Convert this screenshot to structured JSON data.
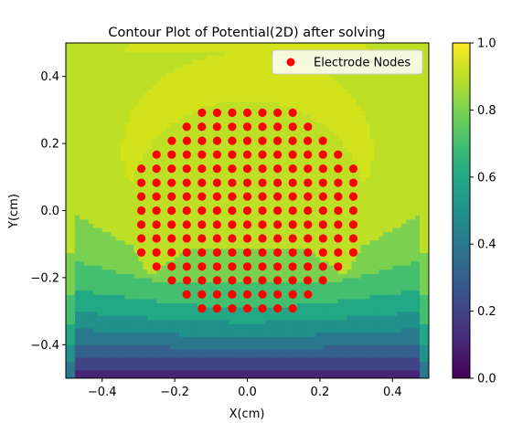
{
  "chart_data": {
    "type": "contour",
    "title": "Contour Plot of Potential(2D) after solving",
    "xlabel": "X(cm)",
    "ylabel": "Y(cm)",
    "xlim": [
      -0.5,
      0.5
    ],
    "ylim": [
      -0.5,
      0.5
    ],
    "x_ticks": [
      -0.4,
      -0.2,
      0.0,
      0.2,
      0.4
    ],
    "x_tick_labels": [
      "−0.4",
      "−0.2",
      "0.0",
      "0.2",
      "0.4"
    ],
    "y_ticks": [
      -0.4,
      -0.2,
      0.0,
      0.2,
      0.4
    ],
    "y_tick_labels": [
      "−0.4",
      "−0.2",
      "0.0",
      "0.2",
      "0.4"
    ],
    "colorbar": {
      "range": [
        0.0,
        1.0
      ],
      "ticks": [
        0.0,
        0.2,
        0.4,
        0.6,
        0.8,
        1.0
      ],
      "tick_labels": [
        "0.0",
        "0.2",
        "0.4",
        "0.6",
        "0.8",
        "1.0"
      ],
      "colormap": "viridis"
    },
    "levels": [
      0.0,
      0.1,
      0.2,
      0.3,
      0.4,
      0.5,
      0.6,
      0.7,
      0.8,
      0.9,
      1.0
    ],
    "level_colors": [
      "#482475",
      "#414487",
      "#355f8d",
      "#2a788e",
      "#21918c",
      "#22a884",
      "#44bf70",
      "#7ad151",
      "#bddf26",
      "#d2e21b",
      "#fde725"
    ],
    "legend": {
      "label": "Electrode Nodes",
      "location": "upper right",
      "marker_color": "#ff0000"
    },
    "electrode_nodes": {
      "marker_color": "#ff0000",
      "grid_step": 0.0417,
      "rows": [
        {
          "y": 0.292,
          "x_min": -0.125,
          "x_max": 0.125
        },
        {
          "y": 0.25,
          "x_min": -0.167,
          "x_max": 0.167
        },
        {
          "y": 0.208,
          "x_min": -0.208,
          "x_max": 0.208
        },
        {
          "y": 0.167,
          "x_min": -0.25,
          "x_max": 0.25
        },
        {
          "y": 0.125,
          "x_min": -0.292,
          "x_max": 0.292
        },
        {
          "y": 0.083,
          "x_min": -0.292,
          "x_max": 0.292
        },
        {
          "y": 0.042,
          "x_min": -0.292,
          "x_max": 0.292
        },
        {
          "y": 0.0,
          "x_min": -0.292,
          "x_max": 0.292
        },
        {
          "y": -0.042,
          "x_min": -0.292,
          "x_max": 0.292
        },
        {
          "y": -0.083,
          "x_min": -0.292,
          "x_max": 0.292
        },
        {
          "y": -0.125,
          "x_min": -0.292,
          "x_max": 0.292
        },
        {
          "y": -0.167,
          "x_min": -0.25,
          "x_max": 0.25
        },
        {
          "y": -0.208,
          "x_min": -0.208,
          "x_max": 0.208
        },
        {
          "y": -0.25,
          "x_min": -0.167,
          "x_max": 0.167
        },
        {
          "y": -0.292,
          "x_min": -0.125,
          "x_max": 0.125
        }
      ]
    }
  }
}
